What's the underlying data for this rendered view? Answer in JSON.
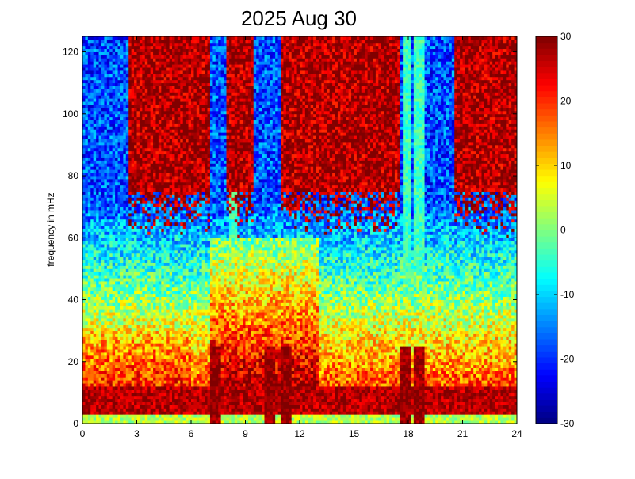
{
  "chart_data": {
    "type": "heatmap",
    "title": "2025 Aug 30",
    "xlabel": "",
    "ylabel": "frequency in mHz",
    "xlim": [
      0,
      24
    ],
    "ylim": [
      0,
      125
    ],
    "x_ticks": [
      0,
      3,
      6,
      9,
      12,
      15,
      18,
      21,
      24
    ],
    "y_ticks": [
      0,
      20,
      40,
      60,
      80,
      100,
      120
    ],
    "colorbar": {
      "min": -30,
      "max": 30,
      "ticks": [
        30,
        20,
        10,
        0,
        -10,
        -20,
        -30
      ]
    },
    "colormap": "jet",
    "grid": false,
    "grid_size": {
      "time_bins": 160,
      "freq_bins": 125
    },
    "features": {
      "background_low_freq_level": 18,
      "high_freq_level": -18,
      "saturated_high_freq_regions_hours": [
        [
          2.5,
          7
        ],
        [
          8,
          9.5
        ],
        [
          11,
          17.5
        ],
        [
          20.5,
          24
        ]
      ],
      "vertical_streaks_hours": [
        8.3,
        17.9,
        18.6
      ],
      "low_freq_bursts_hours": [
        7.3,
        10.4,
        11.3,
        17.9,
        18.6
      ]
    },
    "colors": {
      "low": "#00008f",
      "mid": "#00ffff",
      "high": "#ffff00",
      "max": "#800000"
    }
  }
}
